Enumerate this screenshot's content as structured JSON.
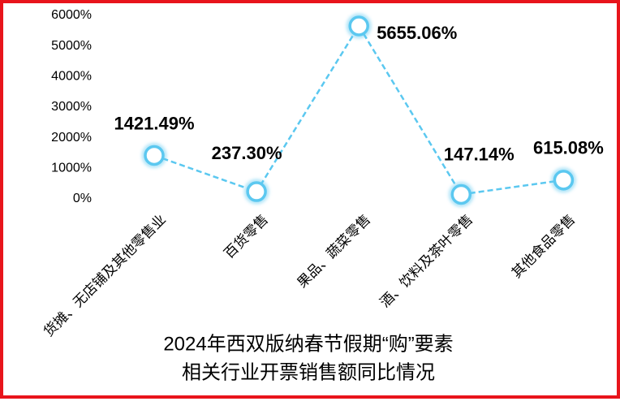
{
  "chart_data": {
    "type": "line",
    "title": [
      "2024年西双版纳春节假期“购”要素",
      "相关行业开票销售额同比情况"
    ],
    "categories": [
      "货摊、无店铺及其他零售业",
      "百货零售",
      "果品、蔬菜零售",
      "酒、饮料及茶叶零售",
      "其他食品零售"
    ],
    "series": [
      {
        "color": "#5bc8f0",
        "values": [
          1421.49,
          237.3,
          5655.06,
          147.14,
          615.08
        ],
        "value_labels": [
          "1421.49%",
          "237.30%",
          "5655.06%",
          "147.14%",
          "615.08%"
        ]
      }
    ],
    "ylim": [
      0,
      6000
    ],
    "yticks": [
      {
        "value": 0,
        "label": "0%"
      },
      {
        "value": 1000,
        "label": "1000%"
      },
      {
        "value": 2000,
        "label": "2000%"
      },
      {
        "value": 3000,
        "label": "3000%"
      },
      {
        "value": 4000,
        "label": "4000%"
      },
      {
        "value": 5000,
        "label": "5000%"
      },
      {
        "value": 6000,
        "label": "6000%"
      }
    ],
    "grid": false
  }
}
